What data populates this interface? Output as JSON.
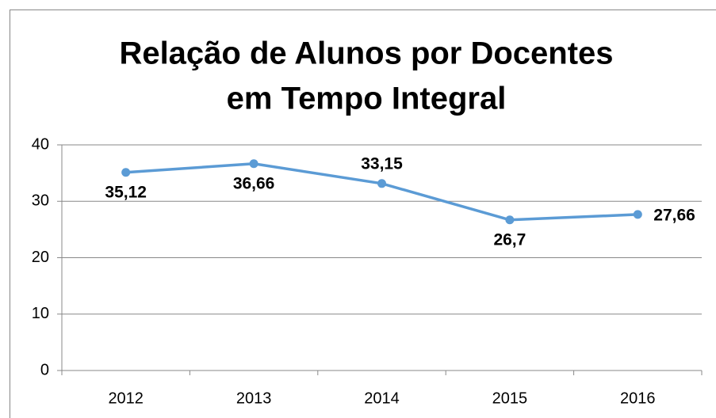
{
  "chart_data": {
    "type": "line",
    "title": [
      "Relação de Alunos por Docentes",
      "em Tempo Integral"
    ],
    "categories": [
      "2012",
      "2013",
      "2014",
      "2015",
      "2016"
    ],
    "series": [
      {
        "name": "Relação de Alunos por Docentes em Tempo Integral",
        "color": "#5b9bd5",
        "values": [
          35.12,
          36.66,
          33.15,
          26.7,
          27.66
        ],
        "value_labels": [
          "35,12",
          "36,66",
          "33,15",
          "26,7",
          "27,66"
        ],
        "label_positions": [
          "below",
          "below",
          "above",
          "below",
          "right"
        ]
      }
    ],
    "ylim": [
      0,
      40
    ],
    "yticks": [
      0,
      10,
      20,
      30,
      40
    ],
    "grid": true,
    "legend": false
  }
}
